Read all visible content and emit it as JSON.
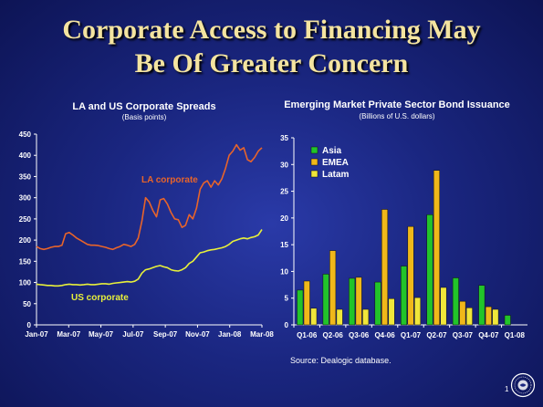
{
  "slide": {
    "title_line1": "Corporate Access to Financing May",
    "title_line2": "Be Of Greater Concern",
    "source": "Source: Dealogic database.",
    "page_number": "1"
  },
  "colors": {
    "background": "#1a2680",
    "title": "#f4e4a0",
    "la_line": "#e8642a",
    "us_line": "#e8f03a",
    "asia": "#22c42a",
    "emea": "#f0b81a",
    "latam": "#f0e63a"
  },
  "chart_data": [
    {
      "type": "line",
      "title": "LA and US Corporate Spreads",
      "subtitle": "(Basis points)",
      "ylim": [
        0,
        450
      ],
      "yticks": [
        0,
        50,
        100,
        150,
        200,
        250,
        300,
        350,
        400,
        450
      ],
      "xticks": [
        "Jan-07",
        "Mar-07",
        "May-07",
        "Jul-07",
        "Sep-07",
        "Nov-07",
        "Jan-08",
        "Mar-08"
      ],
      "grid": false,
      "series": [
        {
          "name": "LA corporate",
          "values": [
            185,
            180,
            178,
            180,
            183,
            185,
            185,
            188,
            215,
            218,
            212,
            205,
            200,
            195,
            190,
            188,
            188,
            187,
            185,
            183,
            180,
            178,
            182,
            185,
            190,
            188,
            185,
            190,
            205,
            245,
            300,
            290,
            270,
            255,
            295,
            298,
            285,
            265,
            250,
            248,
            230,
            235,
            260,
            250,
            275,
            320,
            335,
            340,
            325,
            340,
            330,
            345,
            370,
            400,
            410,
            425,
            412,
            418,
            390,
            385,
            395,
            410,
            418
          ]
        },
        {
          "name": "US corporate",
          "values": [
            96,
            95,
            94,
            93,
            93,
            92,
            92,
            93,
            95,
            96,
            95,
            95,
            94,
            95,
            96,
            95,
            95,
            96,
            97,
            97,
            96,
            98,
            99,
            100,
            101,
            102,
            101,
            103,
            108,
            122,
            130,
            132,
            135,
            138,
            140,
            137,
            135,
            130,
            128,
            127,
            130,
            135,
            145,
            150,
            160,
            170,
            172,
            175,
            177,
            178,
            180,
            182,
            185,
            190,
            197,
            200,
            203,
            205,
            203,
            206,
            208,
            212,
            225
          ]
        }
      ]
    },
    {
      "type": "bar",
      "title": "Emerging Market Private Sector Bond Issuance",
      "subtitle": "(Billions of U.S. dollars)",
      "ylim": [
        0,
        35
      ],
      "yticks": [
        0,
        5,
        10,
        15,
        20,
        25,
        30,
        35
      ],
      "legend_position": "top-left",
      "categories": [
        "Q1-06",
        "Q2-06",
        "Q3-06",
        "Q4-06",
        "Q1-07",
        "Q2-07",
        "Q3-07",
        "Q4-07",
        "Q1-08"
      ],
      "series": [
        {
          "name": "Asia",
          "values": [
            6.5,
            9.5,
            8.7,
            8.0,
            11.0,
            20.6,
            8.8,
            7.4,
            1.8
          ]
        },
        {
          "name": "EMEA",
          "values": [
            8.2,
            13.9,
            8.9,
            21.6,
            18.4,
            28.9,
            4.4,
            3.4,
            0.0
          ]
        },
        {
          "name": "Latam",
          "values": [
            3.1,
            2.9,
            2.9,
            4.9,
            5.1,
            7.0,
            3.2,
            2.9,
            0.0
          ]
        }
      ]
    }
  ]
}
